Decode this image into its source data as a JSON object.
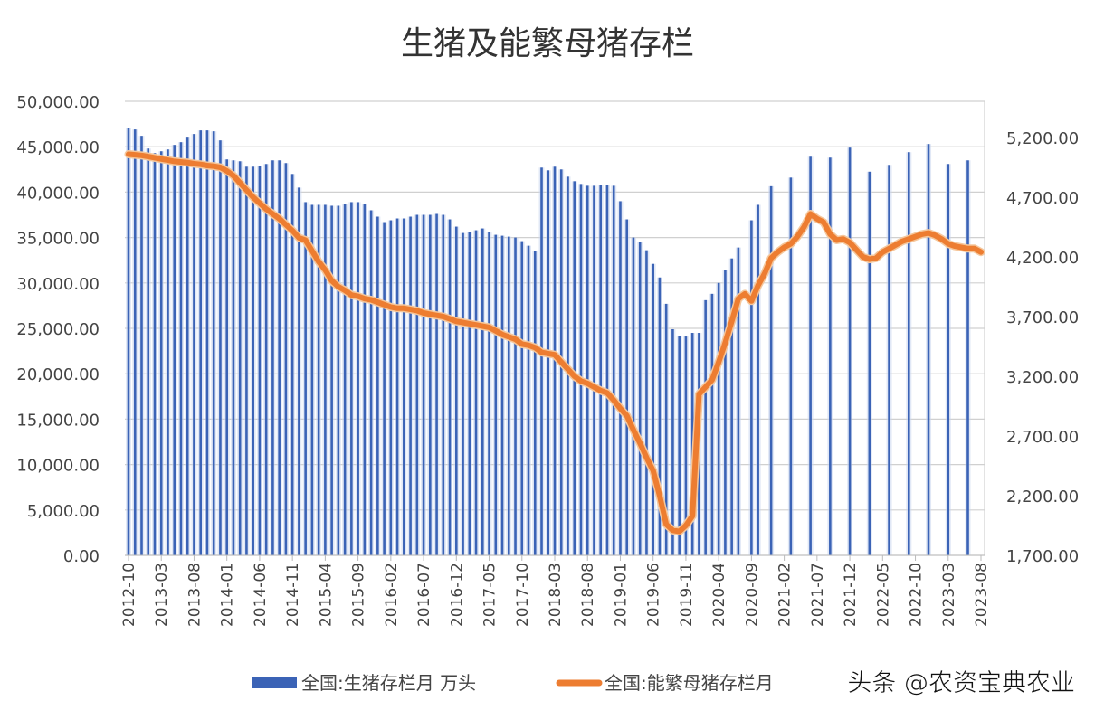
{
  "chart_data": {
    "type": "bar+line",
    "title": "生猪及能繁母猪存栏",
    "left_axis": {
      "ylim": [
        0,
        50000
      ],
      "ticks": [
        "0.00",
        "5,000.00",
        "10,000.00",
        "15,000.00",
        "20,000.00",
        "25,000.00",
        "30,000.00",
        "35,000.00",
        "40,000.00",
        "45,000.00",
        "50,000.00"
      ]
    },
    "right_axis": {
      "ylim": [
        1700,
        5200
      ],
      "ticks": [
        "1,700.00",
        "2,200.00",
        "2,700.00",
        "3,200.00",
        "3,700.00",
        "4,200.00",
        "4,700.00",
        "5,200.00"
      ]
    },
    "grid": true,
    "legend_placement": "bottom",
    "x_tick_labels": [
      "2012-10",
      "2013-03",
      "2013-08",
      "2014-01",
      "2014-06",
      "2014-11",
      "2015-04",
      "2015-09",
      "2016-02",
      "2016-07",
      "2016-12",
      "2017-05",
      "2017-10",
      "2018-03",
      "2018-08",
      "2019-01",
      "2019-06",
      "2019-11",
      "2020-04",
      "2020-09",
      "2021-02",
      "2021-07",
      "2021-12",
      "2022-05",
      "2022-10",
      "2023-03",
      "2023-08"
    ],
    "x": [
      "2012-10",
      "2012-11",
      "2012-12",
      "2013-01",
      "2013-02",
      "2013-03",
      "2013-04",
      "2013-05",
      "2013-06",
      "2013-07",
      "2013-08",
      "2013-09",
      "2013-10",
      "2013-11",
      "2013-12",
      "2014-01",
      "2014-02",
      "2014-03",
      "2014-04",
      "2014-05",
      "2014-06",
      "2014-07",
      "2014-08",
      "2014-09",
      "2014-10",
      "2014-11",
      "2014-12",
      "2015-01",
      "2015-02",
      "2015-03",
      "2015-04",
      "2015-05",
      "2015-06",
      "2015-07",
      "2015-08",
      "2015-09",
      "2015-10",
      "2015-11",
      "2015-12",
      "2016-01",
      "2016-02",
      "2016-03",
      "2016-04",
      "2016-05",
      "2016-06",
      "2016-07",
      "2016-08",
      "2016-09",
      "2016-10",
      "2016-11",
      "2016-12",
      "2017-01",
      "2017-02",
      "2017-03",
      "2017-04",
      "2017-05",
      "2017-06",
      "2017-07",
      "2017-08",
      "2017-09",
      "2017-10",
      "2017-11",
      "2017-12",
      "2018-01",
      "2018-02",
      "2018-03",
      "2018-04",
      "2018-05",
      "2018-06",
      "2018-07",
      "2018-08",
      "2018-09",
      "2018-10",
      "2018-11",
      "2018-12",
      "2019-01",
      "2019-02",
      "2019-03",
      "2019-04",
      "2019-05",
      "2019-06",
      "2019-07",
      "2019-08",
      "2019-09",
      "2019-10",
      "2019-11",
      "2019-12",
      "2020-01",
      "2020-02",
      "2020-03",
      "2020-04",
      "2020-05",
      "2020-06",
      "2020-07",
      "2020-08",
      "2020-09",
      "2020-10",
      "2020-11",
      "2020-12",
      "2021-01",
      "2021-02",
      "2021-03",
      "2021-04",
      "2021-05",
      "2021-06",
      "2021-07",
      "2021-08",
      "2021-09",
      "2021-10",
      "2021-11",
      "2021-12",
      "2022-01",
      "2022-02",
      "2022-03",
      "2022-04",
      "2022-05",
      "2022-06",
      "2022-07",
      "2022-08",
      "2022-09",
      "2022-10",
      "2022-11",
      "2022-12",
      "2023-01",
      "2023-02",
      "2023-03",
      "2023-04",
      "2023-05",
      "2023-06",
      "2023-07",
      "2023-08"
    ],
    "series": [
      {
        "name": "全国:生猪存栏月 万头",
        "type": "bar",
        "axis": "left",
        "color": "#3b63b6",
        "values": [
          47100,
          46900,
          46200,
          44800,
          44300,
          44500,
          44700,
          45200,
          45500,
          46000,
          46400,
          46800,
          46800,
          46700,
          45700,
          43600,
          43500,
          43400,
          42800,
          42800,
          42900,
          43100,
          43500,
          43500,
          43200,
          42000,
          40500,
          38900,
          38600,
          38600,
          38600,
          38500,
          38500,
          38700,
          38900,
          38900,
          38700,
          38000,
          37300,
          36700,
          36900,
          37100,
          37100,
          37300,
          37500,
          37500,
          37500,
          37600,
          37500,
          37000,
          36200,
          35500,
          35600,
          35800,
          36000,
          35600,
          35300,
          35200,
          35100,
          35000,
          34600,
          34100,
          33500,
          42700,
          42400,
          42800,
          42500,
          41700,
          41200,
          40900,
          40700,
          40700,
          40800,
          40800,
          40700,
          39000,
          37000,
          35000,
          34500,
          33600,
          32100,
          30600,
          27700,
          24900,
          24200,
          24100,
          24500,
          24500,
          28100,
          28800,
          30000,
          31400,
          32700,
          33900,
          null,
          36900,
          38600,
          null,
          40650,
          null,
          null,
          41600,
          null,
          null,
          43900,
          null,
          null,
          43800,
          null,
          null,
          44900,
          null,
          null,
          42250,
          null,
          null,
          43000,
          null,
          null,
          44400,
          null,
          null,
          45300,
          null,
          null,
          43100,
          null,
          null,
          43500,
          null,
          null
        ]
      },
      {
        "name": "全国:能繁母猪存栏月",
        "type": "line",
        "axis": "right",
        "color": "#ed7d31",
        "values": [
          5060,
          5055,
          5050,
          5040,
          5030,
          5020,
          5010,
          5000,
          4995,
          4990,
          4980,
          4975,
          4965,
          4960,
          4950,
          4920,
          4880,
          4820,
          4760,
          4700,
          4650,
          4600,
          4560,
          4520,
          4470,
          4420,
          4360,
          4340,
          4250,
          4160,
          4090,
          4000,
          3950,
          3920,
          3880,
          3870,
          3850,
          3840,
          3820,
          3800,
          3780,
          3770,
          3770,
          3760,
          3750,
          3730,
          3720,
          3710,
          3700,
          3680,
          3660,
          3650,
          3640,
          3630,
          3620,
          3610,
          3580,
          3550,
          3530,
          3510,
          3470,
          3460,
          3440,
          3400,
          3390,
          3380,
          3320,
          3260,
          3200,
          3160,
          3140,
          3110,
          3080,
          3060,
          3000,
          2930,
          2870,
          2750,
          2640,
          2520,
          2410,
          2200,
          1960,
          1910,
          1900,
          1950,
          2030,
          3050,
          3110,
          3170,
          3320,
          3480,
          3660,
          3850,
          3890,
          3830,
          3960,
          4060,
          4190,
          4240,
          4280,
          4310,
          4370,
          4450,
          4560,
          4520,
          4490,
          4390,
          4340,
          4350,
          4320,
          4260,
          4200,
          4180,
          4190,
          4240,
          4270,
          4300,
          4330,
          4350,
          4370,
          4390,
          4400,
          4380,
          4350,
          4310,
          4290,
          4280,
          4270,
          4270,
          4240
        ]
      }
    ]
  },
  "watermark": "头条 @农资宝典农业"
}
